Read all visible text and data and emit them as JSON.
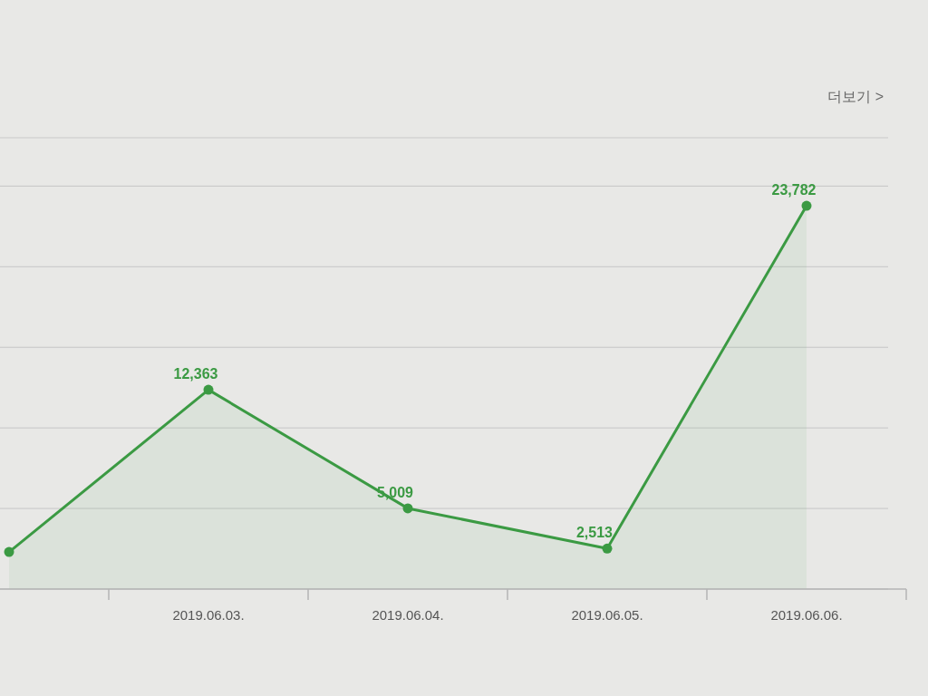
{
  "chart_data": {
    "type": "area",
    "categories": [
      null,
      "2019.06.03.",
      "2019.06.04.",
      "2019.06.05.",
      "2019.06.06."
    ],
    "series": [
      {
        "color": "#3b9a43",
        "values": [
          2300,
          12363,
          5009,
          2513,
          23782
        ],
        "value_labels": [
          null,
          "12,363",
          "5,009",
          "2,513",
          "23,782"
        ]
      }
    ],
    "ylim": [
      0,
      28000
    ],
    "yticks": [
      {
        "value": 0,
        "label": null
      },
      {
        "value": 5000,
        "label": null
      },
      {
        "value": 10000,
        "label": null
      },
      {
        "value": 15000,
        "label": null
      },
      {
        "value": 20000,
        "label": null
      },
      {
        "value": 25000,
        "label": null
      }
    ],
    "grid": "y",
    "marker": "circle",
    "tick_labels": "x",
    "annotations": [
      "더보기 >"
    ]
  }
}
